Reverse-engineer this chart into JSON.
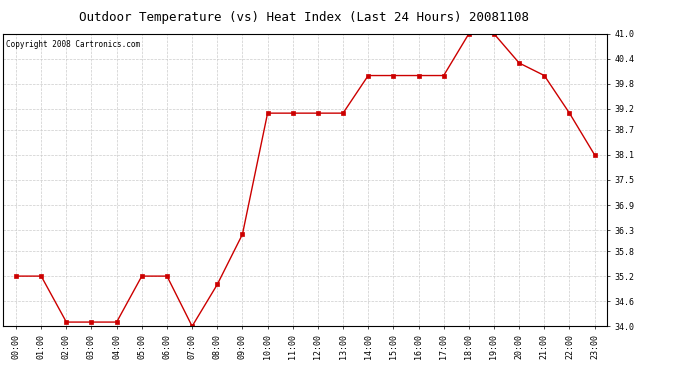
{
  "title": "Outdoor Temperature (vs) Heat Index (Last 24 Hours) 20081108",
  "copyright": "Copyright 2008 Cartronics.com",
  "x_labels": [
    "00:00",
    "01:00",
    "02:00",
    "03:00",
    "04:00",
    "05:00",
    "06:00",
    "07:00",
    "08:00",
    "09:00",
    "10:00",
    "11:00",
    "12:00",
    "13:00",
    "14:00",
    "15:00",
    "16:00",
    "17:00",
    "18:00",
    "19:00",
    "20:00",
    "21:00",
    "22:00",
    "23:00"
  ],
  "y_values": [
    35.2,
    35.2,
    34.1,
    34.1,
    34.1,
    35.2,
    35.2,
    34.0,
    35.0,
    36.2,
    39.1,
    39.1,
    39.1,
    39.1,
    40.0,
    40.0,
    40.0,
    40.0,
    41.0,
    41.0,
    40.3,
    40.0,
    39.1,
    38.1
  ],
  "line_color": "#cc0000",
  "marker": "s",
  "marker_size": 2.5,
  "ylim_min": 34.0,
  "ylim_max": 41.0,
  "yticks": [
    34.0,
    34.6,
    35.2,
    35.8,
    36.3,
    36.9,
    37.5,
    38.1,
    38.7,
    39.2,
    39.8,
    40.4,
    41.0
  ],
  "background_color": "#ffffff",
  "grid_color": "#cccccc",
  "title_fontsize": 9,
  "tick_fontsize": 6,
  "copyright_fontsize": 5.5
}
